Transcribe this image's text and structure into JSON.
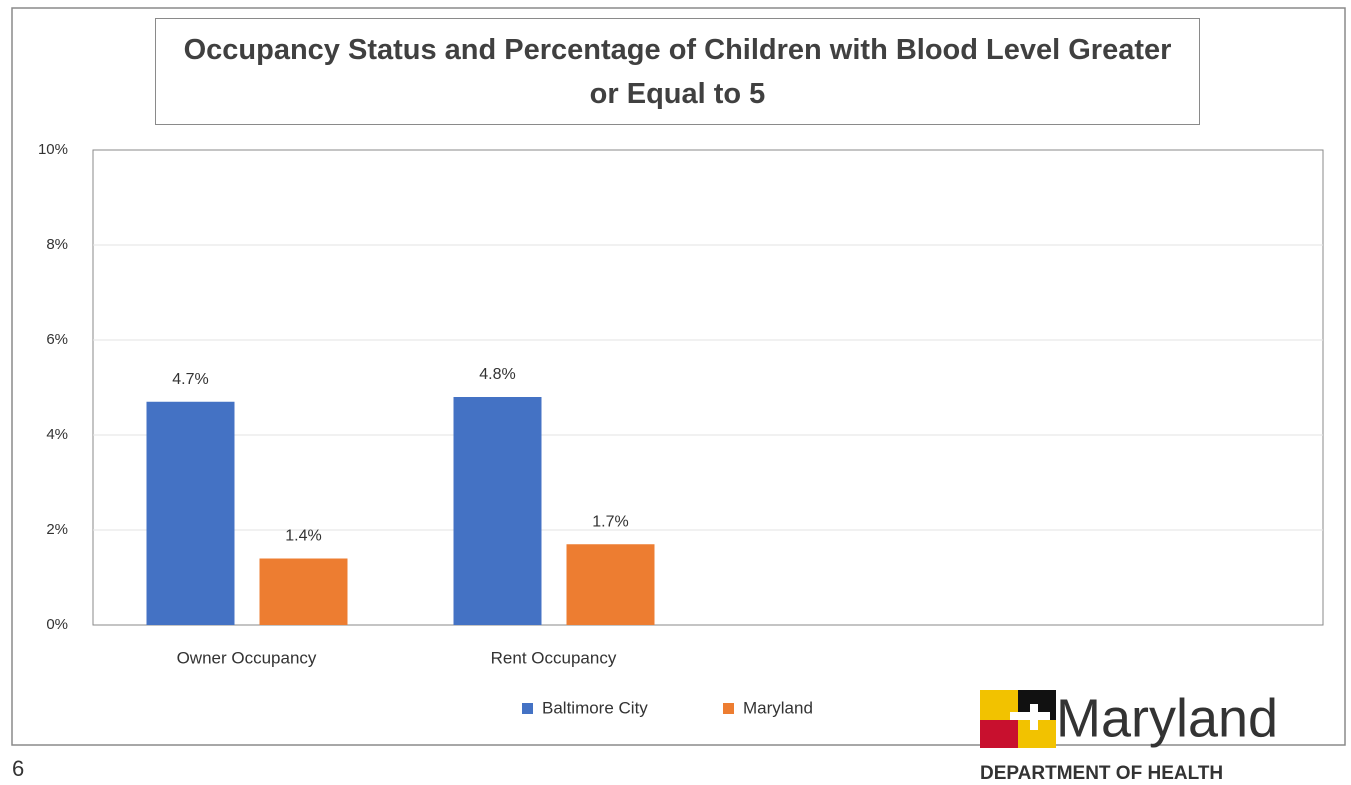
{
  "chart_data": {
    "type": "bar",
    "title": "Occupancy Status and Percentage of Children with Blood Level Greater or Equal to 5",
    "categories": [
      "Owner Occupancy",
      "Rent Occupancy"
    ],
    "series": [
      {
        "name": "Baltimore City",
        "color": "#4472c4",
        "values": [
          4.7,
          4.8
        ],
        "value_labels": [
          "4.7%",
          "4.8%"
        ]
      },
      {
        "name": "Maryland",
        "color": "#ed7d31",
        "values": [
          1.4,
          1.7
        ],
        "value_labels": [
          "1.4%",
          "1.7%"
        ]
      }
    ],
    "ylim": [
      0,
      10
    ],
    "yticks": [
      {
        "value": 0,
        "label": "0%"
      },
      {
        "value": 2,
        "label": "2%"
      },
      {
        "value": 4,
        "label": "4%"
      },
      {
        "value": 6,
        "label": "6%"
      },
      {
        "value": 8,
        "label": "8%"
      },
      {
        "value": 10,
        "label": "10%"
      }
    ],
    "grid": true,
    "legend": "bottom"
  },
  "slide": {
    "page_number": "6",
    "logo": {
      "name": "Maryland",
      "subtitle": "DEPARTMENT OF HEALTH"
    }
  }
}
